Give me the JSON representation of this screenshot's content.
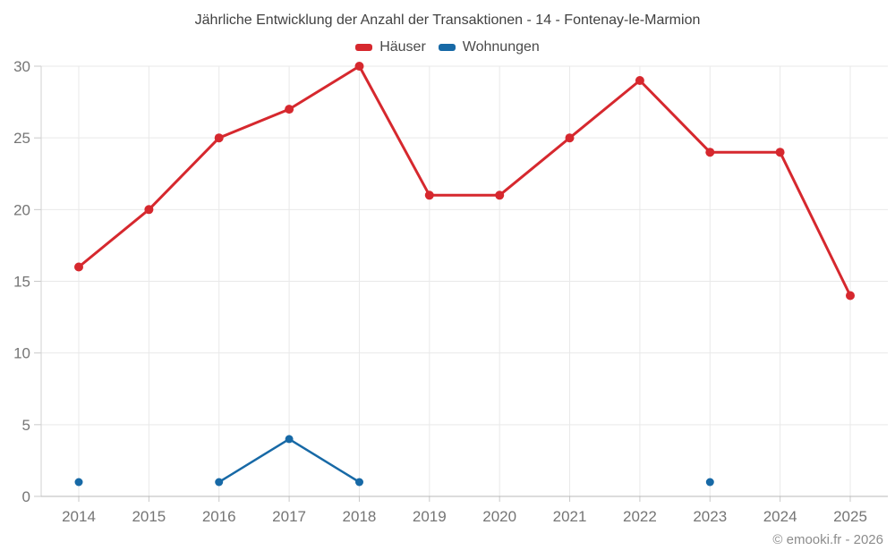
{
  "chart_data": {
    "type": "line",
    "title": "Jährliche Entwicklung der Anzahl der Transaktionen - 14 - Fontenay-le-Marmion",
    "categories": [
      "2014",
      "2015",
      "2016",
      "2017",
      "2018",
      "2019",
      "2020",
      "2021",
      "2022",
      "2023",
      "2024",
      "2025"
    ],
    "series": [
      {
        "name": "Häuser",
        "color": "#d6282e",
        "values": [
          16,
          20,
          25,
          27,
          30,
          21,
          21,
          25,
          29,
          24,
          24,
          14
        ]
      },
      {
        "name": "Wohnungen",
        "color": "#1769a6",
        "values": [
          1,
          null,
          1,
          4,
          1,
          null,
          null,
          null,
          null,
          1,
          null,
          null
        ]
      }
    ],
    "ylim": [
      0,
      30
    ],
    "yticks": [
      0,
      5,
      10,
      15,
      20,
      25,
      30
    ],
    "grid": true,
    "legend_position": "top",
    "xlabel": "",
    "ylabel": ""
  },
  "footer": {
    "text": "© emooki.fr - 2026"
  },
  "colors": {
    "gridline": "#e9e9e9",
    "axis_x": "#b8b8b8",
    "axis_y": "#d2d2d2",
    "tick": "#c9c9c9",
    "tick_label": "#757575"
  }
}
